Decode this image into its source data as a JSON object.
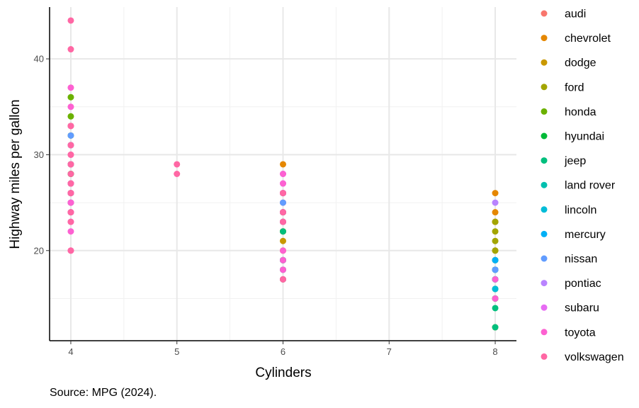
{
  "caption": "Source: MPG (2024).",
  "chart_data": {
    "type": "scatter",
    "xlabel": "Cylinders",
    "ylabel": "Highway miles per gallon",
    "xlim": [
      3.8,
      8.2
    ],
    "ylim": [
      10.6,
      45.4
    ],
    "x_ticks": [
      4,
      5,
      6,
      7,
      8
    ],
    "y_ticks": [
      20,
      30,
      40
    ],
    "y_minor_ticks": [
      15,
      25,
      35
    ],
    "x_minor_ticks": [
      4.5,
      5.5,
      6.5,
      7.5
    ],
    "grid": true,
    "legend_position": "right",
    "series": [
      {
        "name": "audi",
        "color": "#F8766D",
        "points": [
          [
            4,
            29
          ],
          [
            4,
            28
          ],
          [
            4,
            26
          ],
          [
            4,
            27
          ],
          [
            6,
            26
          ],
          [
            6,
            25
          ],
          [
            6,
            24
          ],
          [
            6,
            23
          ],
          [
            8,
            23
          ]
        ]
      },
      {
        "name": "chevrolet",
        "color": "#E58700",
        "points": [
          [
            8,
            26
          ],
          [
            8,
            24
          ],
          [
            8,
            23
          ],
          [
            8,
            20
          ],
          [
            8,
            17
          ],
          [
            8,
            15
          ],
          [
            6,
            29
          ],
          [
            6,
            26
          ],
          [
            6,
            24
          ],
          [
            6,
            22
          ],
          [
            4,
            26
          ]
        ]
      },
      {
        "name": "dodge",
        "color": "#C99800",
        "points": [
          [
            6,
            24
          ],
          [
            6,
            22
          ],
          [
            6,
            21
          ],
          [
            6,
            20
          ],
          [
            6,
            19
          ],
          [
            6,
            17
          ],
          [
            8,
            17
          ],
          [
            8,
            16
          ],
          [
            8,
            15
          ],
          [
            8,
            12
          ]
        ]
      },
      {
        "name": "ford",
        "color": "#A3A500",
        "points": [
          [
            8,
            23
          ],
          [
            8,
            22
          ],
          [
            8,
            21
          ],
          [
            8,
            20
          ],
          [
            8,
            19
          ],
          [
            8,
            18
          ],
          [
            8,
            17
          ],
          [
            8,
            15
          ],
          [
            6,
            19
          ],
          [
            6,
            18
          ],
          [
            6,
            17
          ],
          [
            4,
            26
          ]
        ]
      },
      {
        "name": "honda",
        "color": "#6BB100",
        "points": [
          [
            4,
            36
          ],
          [
            4,
            34
          ],
          [
            4,
            33
          ],
          [
            4,
            32
          ],
          [
            4,
            29
          ],
          [
            4,
            28
          ]
        ]
      },
      {
        "name": "hyundai",
        "color": "#00BA38",
        "points": [
          [
            4,
            31
          ],
          [
            4,
            29
          ],
          [
            4,
            28
          ],
          [
            4,
            27
          ],
          [
            4,
            26
          ],
          [
            4,
            25
          ],
          [
            4,
            24
          ],
          [
            6,
            26
          ],
          [
            6,
            24
          ],
          [
            6,
            23
          ]
        ]
      },
      {
        "name": "jeep",
        "color": "#00BF7D",
        "points": [
          [
            6,
            22
          ],
          [
            6,
            19
          ],
          [
            6,
            17
          ],
          [
            8,
            19
          ],
          [
            8,
            18
          ],
          [
            8,
            17
          ],
          [
            8,
            14
          ],
          [
            8,
            12
          ]
        ]
      },
      {
        "name": "land rover",
        "color": "#00C0AF",
        "points": [
          [
            8,
            18
          ],
          [
            8,
            17
          ],
          [
            8,
            16
          ],
          [
            8,
            15
          ]
        ]
      },
      {
        "name": "lincoln",
        "color": "#00BCD8",
        "points": [
          [
            8,
            18
          ],
          [
            8,
            17
          ],
          [
            8,
            16
          ]
        ]
      },
      {
        "name": "mercury",
        "color": "#00B0F6",
        "points": [
          [
            6,
            19
          ],
          [
            6,
            18
          ],
          [
            8,
            19
          ],
          [
            8,
            17
          ]
        ]
      },
      {
        "name": "nissan",
        "color": "#619CFF",
        "points": [
          [
            4,
            32
          ],
          [
            4,
            31
          ],
          [
            4,
            29
          ],
          [
            4,
            27
          ],
          [
            4,
            26
          ],
          [
            6,
            26
          ],
          [
            6,
            25
          ],
          [
            6,
            24
          ],
          [
            6,
            23
          ],
          [
            8,
            18
          ]
        ]
      },
      {
        "name": "pontiac",
        "color": "#B983FF",
        "points": [
          [
            6,
            28
          ],
          [
            6,
            27
          ],
          [
            6,
            26
          ],
          [
            8,
            25
          ]
        ]
      },
      {
        "name": "subaru",
        "color": "#E76BF3",
        "points": [
          [
            4,
            27
          ],
          [
            4,
            26
          ],
          [
            4,
            25
          ],
          [
            4,
            24
          ],
          [
            4,
            23
          ]
        ]
      },
      {
        "name": "toyota",
        "color": "#FD61D1",
        "points": [
          [
            4,
            37
          ],
          [
            4,
            35
          ],
          [
            4,
            33
          ],
          [
            4,
            31
          ],
          [
            4,
            30
          ],
          [
            4,
            29
          ],
          [
            4,
            27
          ],
          [
            4,
            26
          ],
          [
            4,
            25
          ],
          [
            4,
            24
          ],
          [
            4,
            22
          ],
          [
            4,
            20
          ],
          [
            6,
            28
          ],
          [
            6,
            27
          ],
          [
            6,
            26
          ],
          [
            6,
            24
          ],
          [
            6,
            23
          ],
          [
            6,
            20
          ],
          [
            6,
            19
          ],
          [
            6,
            18
          ],
          [
            6,
            17
          ],
          [
            8,
            17
          ],
          [
            8,
            15
          ]
        ]
      },
      {
        "name": "volkswagen",
        "color": "#FF67A4",
        "points": [
          [
            4,
            44
          ],
          [
            4,
            41
          ],
          [
            4,
            33
          ],
          [
            4,
            31
          ],
          [
            4,
            30
          ],
          [
            4,
            29
          ],
          [
            4,
            28
          ],
          [
            4,
            27
          ],
          [
            4,
            26
          ],
          [
            4,
            24
          ],
          [
            4,
            23
          ],
          [
            4,
            20
          ],
          [
            5,
            29
          ],
          [
            5,
            28
          ],
          [
            6,
            24
          ],
          [
            6,
            23
          ],
          [
            6,
            26
          ],
          [
            6,
            17
          ]
        ]
      }
    ]
  }
}
